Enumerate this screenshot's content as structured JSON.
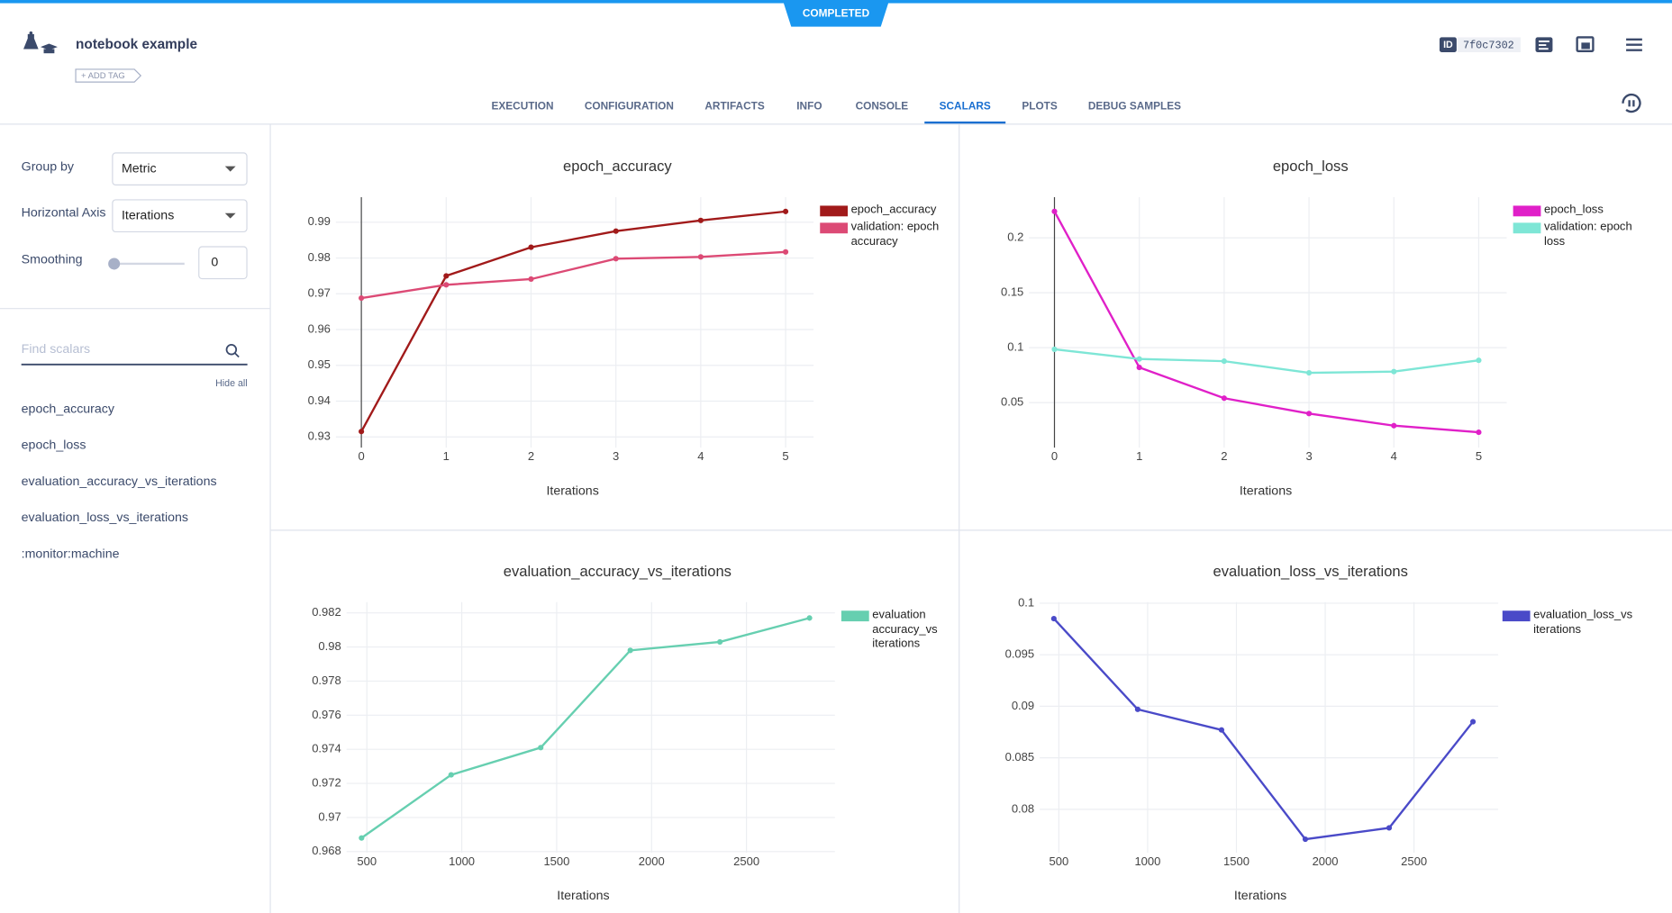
{
  "header": {
    "status": "COMPLETED",
    "title": "notebook example",
    "add_tag": "+ ADD TAG",
    "id_label": "ID",
    "id": "7f0c7302"
  },
  "tabs": [
    "EXECUTION",
    "CONFIGURATION",
    "ARTIFACTS",
    "INFO",
    "CONSOLE",
    "SCALARS",
    "PLOTS",
    "DEBUG SAMPLES"
  ],
  "active_tab": 5,
  "sidebar": {
    "group_by_label": "Group by",
    "group_by": "Metric",
    "axis_label": "Horizontal Axis",
    "axis": "Iterations",
    "smoothing_label": "Smoothing",
    "smoothing": 0,
    "search_placeholder": "Find scalars",
    "hide_all": "Hide all",
    "metrics": [
      "epoch_accuracy",
      "epoch_loss",
      "evaluation_accuracy_vs_iterations",
      "evaluation_loss_vs_iterations",
      ":monitor:machine"
    ]
  },
  "chart_data": [
    {
      "type": "line",
      "title": "epoch_accuracy",
      "x_label": "Iterations",
      "x": [
        0,
        1,
        2,
        3,
        4,
        5
      ],
      "xlim": [
        -0.3,
        5.33
      ],
      "xticks": [
        0,
        1,
        2,
        3,
        4,
        5
      ],
      "ylim": [
        0.927,
        0.997
      ],
      "yticks": [
        0.93,
        0.94,
        0.95,
        0.96,
        0.97,
        0.98,
        0.99
      ],
      "grid": true,
      "zero_line": true,
      "series": [
        {
          "name": "epoch_accuracy",
          "color": "#a11a1a",
          "values": [
            0.9315,
            0.975,
            0.983,
            0.9875,
            0.9905,
            0.993
          ]
        },
        {
          "name": "validation: epoch accuracy",
          "color": "#dc4a75",
          "values": [
            0.9688,
            0.9725,
            0.9741,
            0.9798,
            0.9803,
            0.9817
          ]
        }
      ]
    },
    {
      "type": "line",
      "title": "epoch_loss",
      "x_label": "Iterations",
      "x": [
        0,
        1,
        2,
        3,
        4,
        5
      ],
      "xlim": [
        -0.3,
        5.33
      ],
      "xticks": [
        0,
        1,
        2,
        3,
        4,
        5
      ],
      "ylim": [
        0.009,
        0.237
      ],
      "yticks": [
        0.05,
        0.1,
        0.15,
        0.2
      ],
      "grid": true,
      "zero_line": true,
      "series": [
        {
          "name": "epoch_loss",
          "color": "#e020c8",
          "values": [
            0.224,
            0.082,
            0.054,
            0.04,
            0.029,
            0.023
          ]
        },
        {
          "name": "validation: epoch loss",
          "color": "#7ee6d6",
          "values": [
            0.0985,
            0.0897,
            0.0877,
            0.0771,
            0.0782,
            0.0885
          ]
        }
      ]
    },
    {
      "type": "line",
      "title": "evaluation_accuracy_vs_iterations",
      "x_label": "Iterations",
      "x": [
        472,
        944,
        1416,
        1888,
        2360,
        2832
      ],
      "xlim": [
        393,
        2966
      ],
      "xticks": [
        500,
        1000,
        1500,
        2000,
        2500
      ],
      "ylim": [
        0.96794,
        0.98263
      ],
      "yticks": [
        0.968,
        0.97,
        0.972,
        0.974,
        0.976,
        0.978,
        0.98,
        0.982
      ],
      "grid": true,
      "zero_line": false,
      "series": [
        {
          "name": "evaluation accuracy_vs iterations",
          "color": "#66cfb0",
          "values": [
            0.9688,
            0.9725,
            0.9741,
            0.9798,
            0.9803,
            0.9817
          ]
        }
      ]
    },
    {
      "type": "line",
      "title": "evaluation_loss_vs_iterations",
      "x_label": "Iterations",
      "x": [
        472,
        944,
        1416,
        1888,
        2360,
        2832
      ],
      "xlim": [
        392,
        2974
      ],
      "xticks": [
        500,
        1000,
        1500,
        2000,
        2500
      ],
      "ylim": [
        0.0758,
        0.1001
      ],
      "yticks": [
        0.08,
        0.085,
        0.09,
        0.095,
        0.1
      ],
      "grid": true,
      "zero_line": false,
      "series": [
        {
          "name": "evaluation_loss_vs iterations",
          "color": "#4a4ac8",
          "values": [
            0.0985,
            0.0897,
            0.0877,
            0.0771,
            0.0782,
            0.0885
          ]
        }
      ]
    }
  ]
}
